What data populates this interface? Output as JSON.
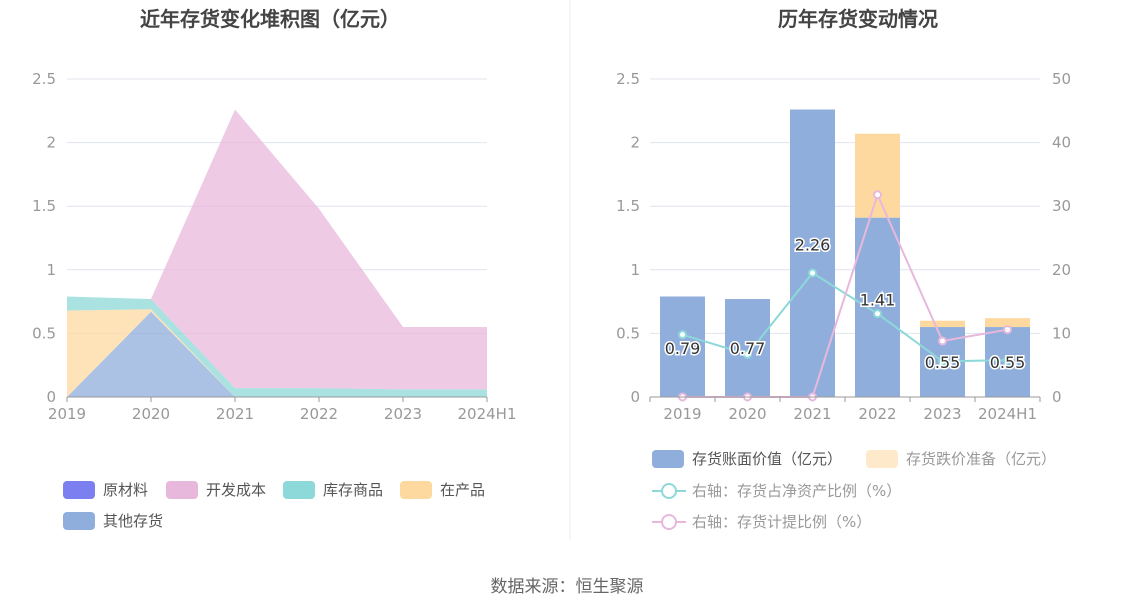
{
  "source": "数据来源：恒生聚源",
  "chart_data": [
    {
      "type": "area",
      "title": "近年存货变化堆积图（亿元）",
      "categories": [
        "2019",
        "2020",
        "2021",
        "2022",
        "2023",
        "2024H1"
      ],
      "yticks": [
        "0",
        "0.5",
        "1",
        "1.5",
        "2",
        "2.5"
      ],
      "ylim": [
        0,
        2.5
      ],
      "stacked": true,
      "legend_position": "bottom",
      "series": [
        {
          "name": "原材料",
          "color": "#7b7ff0",
          "values": [
            0,
            0,
            0,
            0,
            0,
            0
          ]
        },
        {
          "name": "开发成本",
          "color": "#e8b8dc",
          "values": [
            0,
            0,
            2.19,
            1.41,
            0.49,
            0.49
          ]
        },
        {
          "name": "库存商品",
          "color": "#8dd8d8",
          "values": [
            0.11,
            0.08,
            0.07,
            0.07,
            0.06,
            0.06
          ]
        },
        {
          "name": "在产品",
          "color": "#fdd9a0",
          "values": [
            0.68,
            0.02,
            0,
            0,
            0,
            0
          ]
        },
        {
          "name": "其他存货",
          "color": "#8faedc",
          "values": [
            0,
            0.67,
            0,
            0,
            0,
            0
          ]
        }
      ]
    },
    {
      "type": "bar",
      "title": "历年存货变动情况",
      "categories": [
        "2019",
        "2020",
        "2021",
        "2022",
        "2023",
        "2024H1"
      ],
      "yticks_left": [
        "0",
        "0.5",
        "1",
        "1.5",
        "2",
        "2.5"
      ],
      "yticks_right": [
        "0",
        "10",
        "20",
        "30",
        "40",
        "50"
      ],
      "ylim_left": [
        0,
        2.5
      ],
      "ylim_right": [
        0,
        50
      ],
      "stacked": true,
      "legend_position": "bottom",
      "series": [
        {
          "name": "存货账面价值（亿元）",
          "color": "#8faedc",
          "values": [
            0.79,
            0.77,
            2.26,
            1.41,
            0.55,
            0.55
          ],
          "labels": [
            "0.79",
            "0.77",
            "2.26",
            "1.41",
            "0.55",
            "0.55"
          ]
        },
        {
          "name": "存货跌价准备（亿元）",
          "color": "#fdd9a0",
          "values": [
            0,
            0,
            0,
            0.66,
            0.05,
            0.07
          ]
        }
      ],
      "lines": [
        {
          "name": "右轴：存货占净资产比例（%）",
          "color": "#8dd8d8",
          "axis": "right",
          "values": [
            9.8,
            6.7,
            19.5,
            13.1,
            5.6,
            5.8
          ]
        },
        {
          "name": "右轴：存货计提比例（%）",
          "color": "#e8b8dc",
          "axis": "right",
          "values": [
            0,
            0,
            0,
            31.8,
            8.8,
            10.6
          ]
        }
      ]
    }
  ]
}
